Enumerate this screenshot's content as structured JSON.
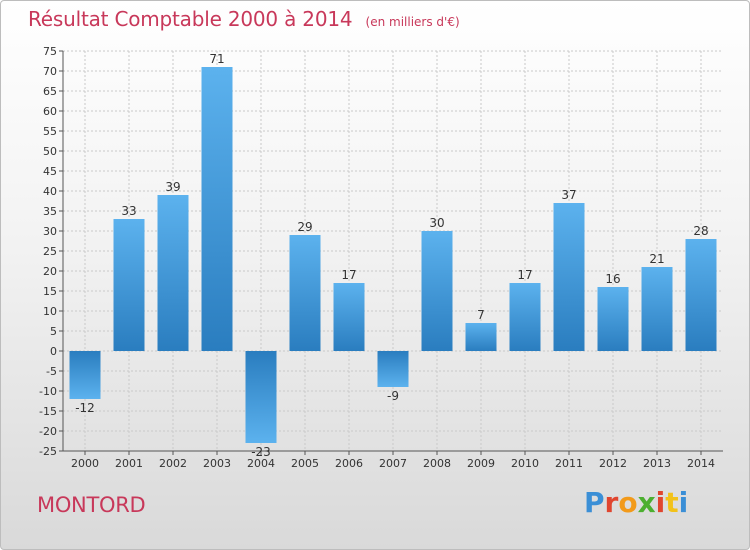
{
  "title": "Résultat Comptable 2000 à 2014",
  "subtitle": "(en milliers d'€)",
  "commune": "MONTORD",
  "logo": {
    "text": "Proxiti",
    "letter_colors": [
      "#3b8fd6",
      "#e0452f",
      "#f29a1a",
      "#4caf30",
      "#e0452f",
      "#f2c21a",
      "#3b8fd6"
    ]
  },
  "colors": {
    "accent": "#c8385a",
    "bar_light": "#5cb2ee",
    "bar_dark": "#2a7dbf"
  },
  "chart_data": {
    "type": "bar",
    "categories": [
      "2000",
      "2001",
      "2002",
      "2003",
      "2004",
      "2005",
      "2006",
      "2007",
      "2008",
      "2009",
      "2010",
      "2011",
      "2012",
      "2013",
      "2014"
    ],
    "values": [
      -12,
      33,
      39,
      71,
      -23,
      29,
      17,
      -9,
      30,
      7,
      17,
      37,
      16,
      21,
      28
    ],
    "title": "Résultat Comptable 2000 à 2014",
    "subtitle": "(en milliers d'€)",
    "ylim": [
      -25,
      75
    ],
    "yticks": [
      -25,
      -20,
      -15,
      -10,
      -5,
      0,
      5,
      10,
      15,
      20,
      25,
      30,
      35,
      40,
      45,
      50,
      55,
      60,
      65,
      70,
      75
    ],
    "grid": true
  }
}
